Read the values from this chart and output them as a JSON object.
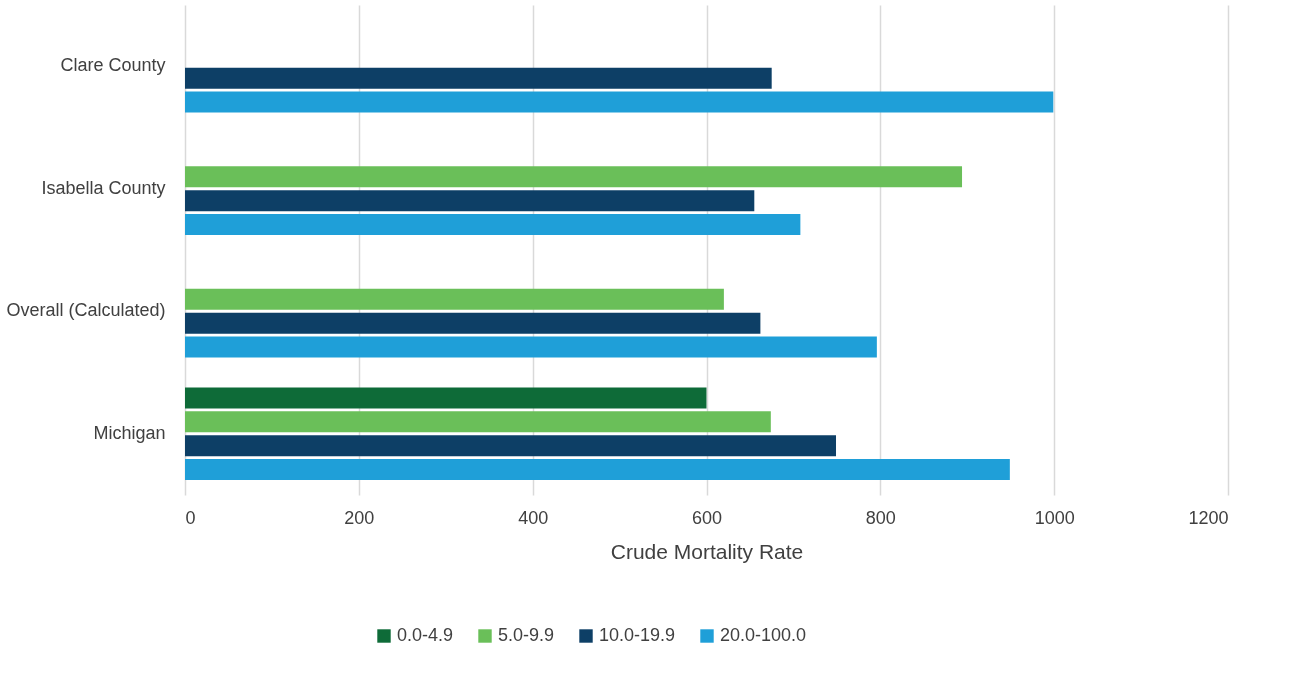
{
  "chart_data": {
    "type": "bar",
    "orientation": "horizontal",
    "xlabel": "Crude Mortality Rate",
    "categories": [
      "Clare County",
      "Isabella County",
      "Overall (Calculated)",
      "Michigan"
    ],
    "series": [
      {
        "name": "0.0-4.9",
        "color": "#0e6b38",
        "values": [
          null,
          null,
          null,
          600
        ]
      },
      {
        "name": "5.0-9.9",
        "color": "#6abf59",
        "values": [
          null,
          894,
          620,
          674
        ]
      },
      {
        "name": "10.0-19.9",
        "color": "#0d3f66",
        "values": [
          675,
          655,
          662,
          749
        ]
      },
      {
        "name": "20.0-100.0",
        "color": "#1f9fd8",
        "values": [
          999,
          708,
          796,
          949
        ]
      }
    ],
    "xlim": [
      0,
      1200
    ],
    "xticks": [
      0,
      200,
      400,
      600,
      800,
      1000,
      1200
    ],
    "grid": "x",
    "legend": "bottom"
  }
}
